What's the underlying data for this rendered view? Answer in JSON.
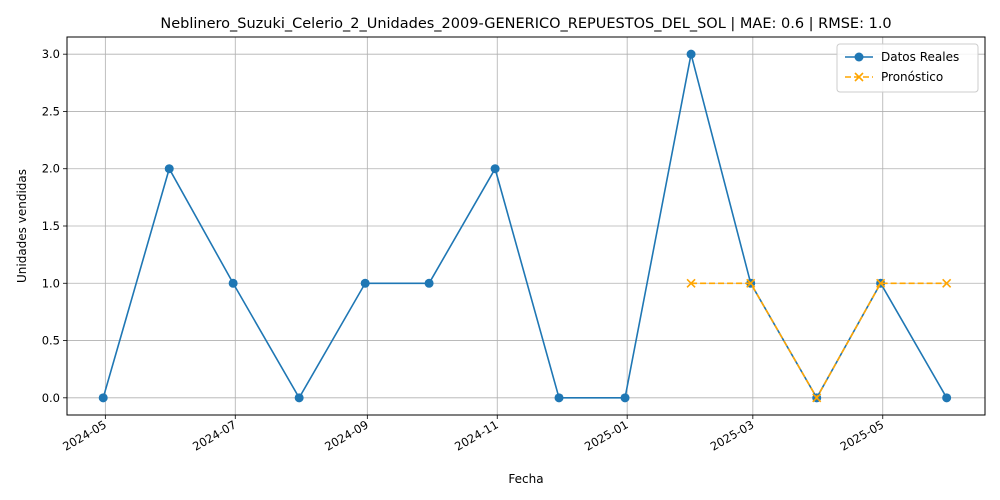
{
  "chart_data": {
    "type": "line",
    "title": "Neblinero_Suzuki_Celerio_2_Unidades_2009-GENERICO_REPUESTOS_DEL_SOL | MAE: 0.6 | RMSE: 1.0",
    "xlabel": "Fecha",
    "ylabel": "Unidades vendidas",
    "ylim": [
      -0.15,
      3.15
    ],
    "xlim": [
      "2024-04-13",
      "2025-06-18"
    ],
    "grid": true,
    "legend_position": "top-right",
    "x_ticks": [
      "2024-05",
      "2024-07",
      "2024-09",
      "2024-11",
      "2025-01",
      "2025-03",
      "2025-05"
    ],
    "y_ticks": [
      "0.0",
      "0.5",
      "1.0",
      "1.5",
      "2.0",
      "2.5",
      "3.0"
    ],
    "series": [
      {
        "name": "Datos Reales",
        "color": "#1f77b4",
        "marker": "circle",
        "linestyle": "solid",
        "x": [
          "2024-04-30",
          "2024-05-31",
          "2024-06-30",
          "2024-07-31",
          "2024-08-31",
          "2024-09-30",
          "2024-10-31",
          "2024-11-30",
          "2024-12-31",
          "2025-01-31",
          "2025-02-28",
          "2025-03-31",
          "2025-04-30",
          "2025-05-31"
        ],
        "y": [
          0,
          2,
          1,
          0,
          1,
          1,
          2,
          0,
          0,
          3,
          1,
          0,
          1,
          0
        ]
      },
      {
        "name": "Pronóstico",
        "color": "#ffa500",
        "marker": "x",
        "linestyle": "dashed",
        "x": [
          "2025-01-31",
          "2025-02-28",
          "2025-03-31",
          "2025-04-30",
          "2025-05-31"
        ],
        "y": [
          1,
          1,
          0,
          1,
          1
        ]
      }
    ]
  }
}
